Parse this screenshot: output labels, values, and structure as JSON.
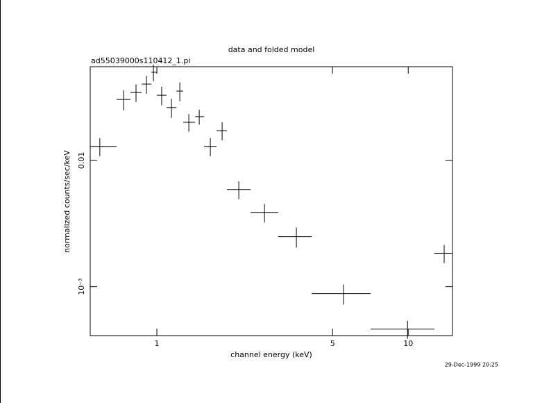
{
  "chart_data": {
    "type": "errorbar",
    "title": "data and folded model",
    "subtitle": "ad55039000s110412_1.pi",
    "xlabel": "channel energy (keV)",
    "ylabel": "normalized counts/sec/keV",
    "timestamp": "29-Dec-1999 20:25",
    "xscale": "log",
    "yscale": "log",
    "color": "#000000",
    "xlim": [
      0.543,
      15.0
    ],
    "ylim": [
      0.00041,
      0.0552
    ],
    "xticks": [
      1,
      5,
      10
    ],
    "yticks": [
      0.01,
      {
        "value": 0.001,
        "label": "10⁻³"
      }
    ],
    "x": [
      0.593,
      0.737,
      0.826,
      0.909,
      0.969,
      1.045,
      1.143,
      1.234,
      1.34,
      1.474,
      1.632,
      1.818,
      2.118,
      2.68,
      3.59,
      5.53,
      9.94,
      13.9
    ],
    "x_low": [
      0.543,
      0.691,
      0.785,
      0.87,
      0.951,
      1.0,
      1.093,
      1.195,
      1.273,
      1.419,
      1.541,
      1.728,
      1.901,
      2.36,
      3.04,
      4.13,
      7.09,
      12.7
    ],
    "x_high": [
      0.691,
      0.785,
      0.87,
      0.951,
      1.0,
      1.093,
      1.195,
      1.273,
      1.419,
      1.541,
      1.728,
      1.901,
      2.36,
      3.04,
      4.13,
      7.09,
      12.7,
      15.0
    ],
    "values": [
      0.0129,
      0.0304,
      0.0345,
      0.0402,
      0.0499,
      0.0328,
      0.0262,
      0.0354,
      0.02005,
      0.0222,
      0.0129,
      0.0172,
      0.00588,
      0.00387,
      0.00249,
      0.000881,
      0.000462,
      0.00184
    ],
    "yerr": [
      0.0021,
      0.0055,
      0.0055,
      0.0065,
      0.0075,
      0.0055,
      0.0045,
      0.006,
      0.0032,
      0.003,
      0.0021,
      0.0028,
      0.00095,
      0.00065,
      0.00045,
      0.00016,
      7.5e-05,
      0.0003
    ]
  }
}
